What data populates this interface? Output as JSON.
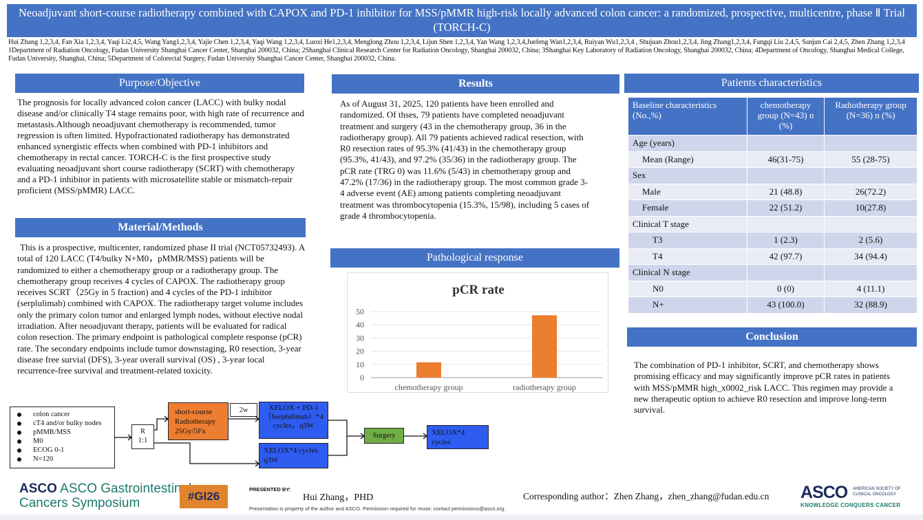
{
  "title": "Neoadjuvant short-course radiotherapy combined with CAPOX and PD-1 inhibitor for MSS/pMMR high-risk locally advanced colon cancer: a randomized, prospective, multicentre, phase Ⅱ Trial (TORCH-C)",
  "authors": "Hui Zhang 1,2,3,4, Fan Xia 1,2,3,4, Yaqi Li2,4,5, Wang Yang1,2,3,4, Yajie Chen 1,2,3,4, Yaqi Wang 1,2,3,4, Luoxi He1,2,3,4, Menglong Zhou 1,2,3,4, Lijun Shen 1,2,3,4, Yan Wang 1,2,3,4,Juefeng Wan1,2,3,4, Ruiyan Wu1,2,3,4 , Shujuan Zhou1,2,3,4, Jing Zhang1,2,3,4, Fangqi Liu 2,4,5, Sanjun Cai 2,4,5, Zhen Zhang 1,2,3,4",
  "affiliations": "1Department of Radiation Oncology, Fudan University Shanghai Cancer Center, Shanghai 200032, China; 2Shanghai Clinical Research Center for Radiation Oncology, Shanghai 200032, China; 3Shanghai Key Laboratory of Radiation Oncology, Shanghai 200032, China; 4Department of Oncology, Shanghai Medical College, Fudan University, Shanghai, China; 5Department of Colorectal Surgery, Fudan University Shanghai Cancer Center, Shanghai 200032, China.",
  "purpose": {
    "heading": "Purpose/Objective",
    "text": "The prognosis for locally advanced colon cancer (LACC) with bulky nodal disease and/or clinically T4 stage remains poor, with high rate of recurrence and metastasis.Although neoadjuvant chemotherapy is recommended, tumor regression is often limited. Hypofractionated radiotherapy has demonstrated enhanced synergistic effects when combined with PD-1 inhibitors and chemotherapy in rectal cancer. TORCH-C is the first prospective study evaluating neoadjuvant short course radiotherapy (SCRT) with chemotherapy and a PD-1 inhibitor in patients with microsatellite stable or mismatch-repair proficient (MSS/pMMR) LACC."
  },
  "methods": {
    "heading": "Material/Methods",
    "text": "This is a prospective, multicenter, randomized phase II trial (NCT05732493). A total of 120 LACC (T4/bulky N+M0，pMMR/MSS) patients will be randomized to either a chemotherapy group or a radiotherapy group. The chemotherapy group receives 4 cycles of CAPOX. The radiotherapy group receives SCRT（25Gy in 5 fraction) and 4 cycles of the PD-1 inhibitor (serplulimab) combined with CAPOX. The radiotherapy target volume includes only the primary colon tumor and enlarged lymph nodes, without elective nodal irradiation. After neoadjuvant therapy, patients will be evaluated for radical colon resection. The primary endpoint is pathological complete response (pCR) rate. The secondary endpoints include tumor downstaging, R0 resection, 3-year disease free survial (DFS), 3-year overall survival (OS) , 3-year local recurrence-free survival and treatment-related toxicity."
  },
  "flow": {
    "criteria": [
      "colon cancer",
      "cT4 and/or bulky nodes",
      "pMMR/MSS",
      "M0",
      "ECOG 0-1",
      "N=120"
    ],
    "randomize": "R",
    "ratio": "1:1",
    "scrt": "short-course Radiotherapy 25Gy/5Fx",
    "interval": "2w",
    "xelox_pd1": "XELOX + PD-1（Serplulimab）*4 cycles，q3W",
    "xelox": "XELOX*4 cycles q3W",
    "surgery": "Surgery",
    "adjuvant": "XELOX*4 cycles"
  },
  "results": {
    "heading": "Results",
    "text": "As of August 31, 2025, 120 patients have been enrolled and randomized. Of thses, 79 patients have completed neoadjuvant treatment and surgery (43 in the chemotherapy group, 36 in the radiotherapy group). All 79 patients achieved radical resection, with R0 resection rates of 95.3% (41/43) in the chemotherapy group (95.3%, 41/43), and 97.2% (35/36) in the radiotherapy group. The pCR rate (TRG 0) was 11.6% (5/43) in chemotherapy group and 47.2% (17/36) in the radiotherapy group. The most common grade 3-4 adverse event (AE) among patients completing neoadjuvant treatment was thrombocytopenia (15.3%, 15/98), including 5 cases of grade 4 thrombocytopenia."
  },
  "pathology": {
    "heading": "Pathological response"
  },
  "chart_data": {
    "type": "bar",
    "title": "pCR rate",
    "categories": [
      "chemotherapy group",
      "radiotherapy group"
    ],
    "values": [
      11.6,
      47.2
    ],
    "yticks": [
      "0",
      "10",
      "20",
      "30",
      "40",
      "50"
    ],
    "ylim": [
      0,
      50
    ],
    "grid": true,
    "color": "#ED7D31"
  },
  "characteristics": {
    "heading": "Patients characteristics",
    "header": [
      "Baseline characteristics (No.,%)",
      "chemotherapy group (N=43) n (%)",
      "Radiotherapy group (N=36) n (%)"
    ],
    "rows": [
      [
        "Age (years)",
        "",
        ""
      ],
      [
        "Mean (Range)",
        "46(31-75)",
        "55 (28-75)"
      ],
      [
        "Sex",
        "",
        ""
      ],
      [
        "Male",
        "21 (48.8)",
        "26(72.2)"
      ],
      [
        "Female",
        "22 (51.2)",
        "10(27.8)"
      ],
      [
        "Clinical T stage",
        "",
        ""
      ],
      [
        "T3",
        "1 (2.3)",
        "2 (5.6)"
      ],
      [
        "T4",
        "42 (97.7)",
        "34 (94.4)"
      ],
      [
        "Clinical N stage",
        "",
        ""
      ],
      [
        "N0",
        "0 (0)",
        "4 (11.1)"
      ],
      [
        "N+",
        "43 (100.0)",
        "32 (88.9)"
      ]
    ]
  },
  "conclusion": {
    "heading": "Conclusion",
    "text": "The combination of PD-1 inhibitor, SCRT, and chemotherapy shows promising efficacy and may significantly improve pCR rates in patients with MSS/pMMR high_x0002_risk LACC. This regimen may provide a new therapeutic option to achieve R0 resection and improve long-term survival."
  },
  "footer": {
    "asco_gi_1": "ASCO Gastrointestinal",
    "asco_gi_2": "Cancers Symposium",
    "hashtag": "#GI26",
    "presented_by": "PRESENTED BY:",
    "presenter": "Hui Zhang，PHD",
    "notice": "Presentation is property of the author and ASCO. Permission required for reuse; contact permissions@asco.org.",
    "corresponding": "Corresponding author：Zhen Zhang，zhen_zhang@fudan.edu.cn",
    "asco": "ASCO",
    "asco_sub1": "AMERICAN SOCIETY OF",
    "asco_sub2": "CLINICAL ONCOLOGY",
    "asco_tag": "KNOWLEDGE CONQUERS CANCER"
  }
}
